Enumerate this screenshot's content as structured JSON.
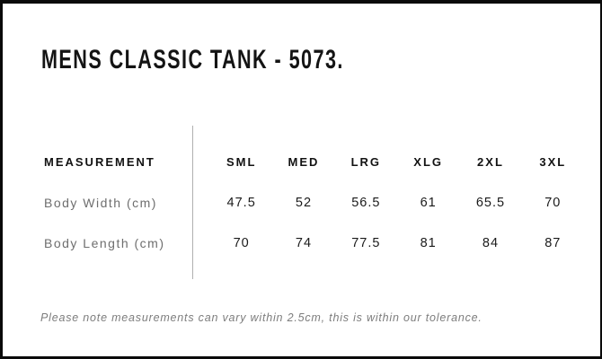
{
  "page": {
    "title": "MENS CLASSIC TANK - 5073.",
    "note": "Please note measurements can vary within 2.5cm, this is within our tolerance."
  },
  "table": {
    "label_header": "MEASUREMENT",
    "size_headers": [
      "SML",
      "MED",
      "LRG",
      "XLG",
      "2XL",
      "3XL"
    ],
    "rows": [
      {
        "label": "Body Width (cm)",
        "values": [
          "47.5",
          "52",
          "56.5",
          "61",
          "65.5",
          "70"
        ]
      },
      {
        "label": "Body Length (cm)",
        "values": [
          "70",
          "74",
          "77.5",
          "81",
          "84",
          "87"
        ]
      }
    ]
  },
  "colors": {
    "frame_border": "#0a0a0a",
    "background": "#ffffff",
    "title_text": "#141414",
    "header_text": "#121212",
    "row_label_text": "#6e6e6e",
    "value_text": "#1a1a1a",
    "divider": "#b0b0b0",
    "note_text": "#7d7d7d"
  }
}
